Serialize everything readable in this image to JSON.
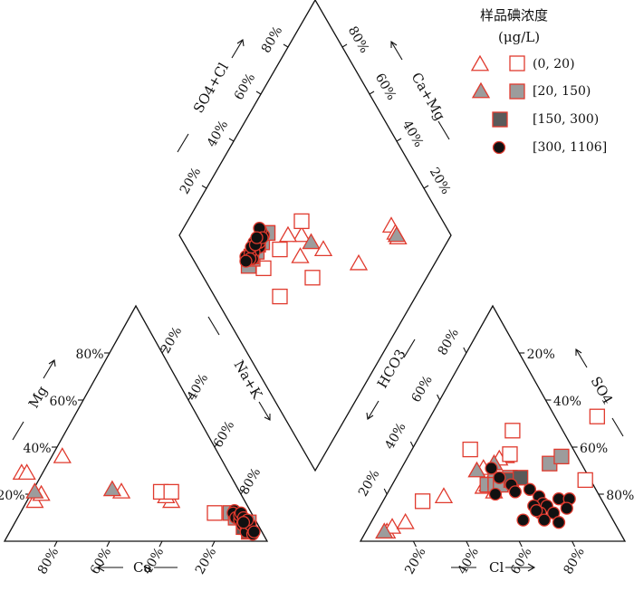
{
  "chart_data": {
    "type": "scatter",
    "subtype": "piper-trilinear",
    "legend": {
      "title_line1": "样品碘浓度",
      "title_line2": "(μg/L)",
      "placement": "top-right",
      "entries": [
        {
          "label": "(0, 20)",
          "fill": "#ffffff",
          "stroke": "#e03a2e"
        },
        {
          "label": "[20, 150)",
          "fill": "#9c9c9c",
          "stroke": "#e03a2e"
        },
        {
          "label": "[150, 300)",
          "fill": "#5a5a5a",
          "stroke": "#e03a2e"
        },
        {
          "label": "[300, 1106]",
          "fill": "#111111",
          "stroke": "#e03a2e"
        }
      ]
    },
    "axes": {
      "cation_ternary": {
        "left_label": "Mg",
        "bottom_label": "Ca",
        "right_label": "Na+K"
      },
      "anion_ternary": {
        "right_label": "SO4",
        "bottom_label": "Cl",
        "left_label": "HCO3"
      },
      "diamond": {
        "upper_left_label": "SO4+Cl",
        "upper_right_label": "Ca+Mg"
      },
      "tick_labels": [
        "20%",
        "40%",
        "60%",
        "80%"
      ]
    },
    "series": [
      {
        "name": "(0, 20)",
        "cation_triangles": [
          [
            80,
            17
          ],
          [
            79,
            29
          ],
          [
            77,
            29
          ],
          [
            76,
            20
          ],
          [
            60,
            36
          ],
          [
            45,
            21
          ],
          [
            28,
            17
          ],
          [
            29,
            19
          ]
        ],
        "cation_squares": [
          [
            30,
            21
          ],
          [
            26,
            21
          ],
          [
            14,
            12
          ]
        ],
        "anion_triangles": [
          [
            8,
            4
          ],
          [
            9,
            6
          ],
          [
            13,
            8
          ],
          [
            22,
            19
          ],
          [
            31,
            31
          ],
          [
            37,
            36
          ],
          [
            35,
            35
          ],
          [
            35,
            23
          ],
          [
            40,
            21
          ]
        ],
        "anion_squares": [
          [
            15,
            17
          ],
          [
            22,
            39
          ],
          [
            34,
            47
          ],
          [
            38,
            37
          ],
          [
            63,
            53
          ],
          [
            72,
            26
          ]
        ],
        "diamond_triangles": [
          [
            24,
            80
          ],
          [
            21,
            80
          ],
          [
            19,
            80
          ],
          [
            28,
            60
          ],
          [
            44,
            50
          ],
          [
            55,
            45
          ],
          [
            51,
            40
          ],
          [
            60,
            40
          ]
        ],
        "diamond_squares": [
          [
            62,
            24
          ],
          [
            60,
            34
          ],
          [
            58,
            48
          ],
          [
            42,
            40
          ],
          [
            50,
            24
          ]
        ]
      },
      {
        "name": "[20, 150)",
        "cation_triangles": [
          [
            78,
            21
          ],
          [
            48,
            22
          ]
        ],
        "cation_squares": [
          [
            8,
            12
          ],
          [
            7,
            10
          ],
          [
            4,
            7
          ],
          [
            3,
            8
          ],
          [
            5,
            6
          ]
        ],
        "anion_triangles": [
          [
            7,
            4
          ],
          [
            29,
            30
          ],
          [
            34,
            33
          ],
          [
            36,
            24
          ]
        ],
        "anion_squares": [
          [
            36,
            24
          ],
          [
            38,
            26
          ],
          [
            41,
            25
          ],
          [
            43,
            27
          ],
          [
            55,
            33
          ],
          [
            58,
            36
          ],
          [
            39,
            24
          ],
          [
            41,
            24
          ]
        ],
        "diamond_triangles": [
          [
            20,
            80
          ],
          [
            50,
            47
          ]
        ],
        "diamond_squares": [
          [
            68,
            33
          ],
          [
            68,
            19
          ],
          [
            68,
            22
          ],
          [
            68,
            25
          ],
          [
            68,
            29
          ],
          [
            68,
            33
          ]
        ]
      },
      {
        "name": "[150, 300)",
        "cation_squares": [
          [
            6,
            6
          ],
          [
            5,
            4
          ]
        ],
        "anion_squares": [
          [
            44,
            26
          ],
          [
            47,
            27
          ]
        ],
        "diamond_squares": [
          [
            69,
            22
          ],
          [
            69,
            27
          ]
        ]
      },
      {
        "name": "[300, 1106]",
        "cation_circles": [
          [
            6,
            13
          ],
          [
            7,
            12
          ],
          [
            7,
            10
          ],
          [
            6,
            9
          ],
          [
            5,
            11
          ],
          [
            4,
            12
          ],
          [
            6,
            7
          ],
          [
            5,
            6
          ],
          [
            4,
            5
          ],
          [
            6,
            4
          ],
          [
            3,
            7
          ],
          [
            4,
            10
          ],
          [
            3,
            9
          ],
          [
            5,
            8
          ],
          [
            4,
            3
          ],
          [
            3,
            4
          ]
        ],
        "anion_circles": [
          [
            34,
            31
          ],
          [
            39,
            27
          ],
          [
            45,
            24
          ],
          [
            48,
            21
          ],
          [
            53,
            22
          ],
          [
            58,
            19
          ],
          [
            61,
            16
          ],
          [
            63,
            15
          ],
          [
            66,
            18
          ],
          [
            70,
            18
          ],
          [
            71,
            14
          ],
          [
            67,
            12
          ],
          [
            62,
            12
          ],
          [
            58,
            15
          ],
          [
            60,
            13
          ],
          [
            57,
            9
          ],
          [
            65,
            9
          ],
          [
            71,
            8
          ],
          [
            41,
            20
          ]
        ],
        "diamond_circles": [
          [
            71,
            20
          ],
          [
            70,
            24
          ],
          [
            70,
            29
          ],
          [
            69,
            31
          ],
          [
            71,
            31
          ],
          [
            68,
            27
          ],
          [
            69,
            24
          ],
          [
            68,
            22
          ],
          [
            70,
            22
          ],
          [
            71,
            26
          ],
          [
            69,
            28
          ],
          [
            70,
            29
          ],
          [
            71,
            24
          ],
          [
            69,
            21
          ],
          [
            70,
            19
          ],
          [
            72,
            31
          ],
          [
            70,
            26
          ],
          [
            69,
            30
          ],
          [
            71,
            28
          ]
        ]
      }
    ]
  }
}
